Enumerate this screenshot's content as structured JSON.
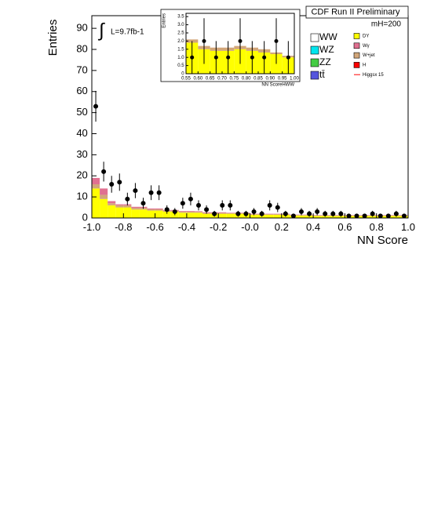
{
  "chart_data": [
    {
      "type": "histogram",
      "title": "CDF Run II Preliminary",
      "xlabel": "NN Score",
      "ylabel": "Entries",
      "annotations": [
        "L=9.7fb-1",
        "mH=200"
      ],
      "bins": [
        -1,
        -0.95,
        -0.9,
        -0.85,
        -0.8,
        -0.75,
        -0.7,
        -0.65,
        -0.6,
        -0.55,
        -0.5,
        -0.45,
        -0.4,
        -0.35,
        -0.3,
        -0.25,
        -0.2,
        -0.15,
        -0.1,
        -0.05,
        0,
        0.05,
        0.1,
        0.15,
        0.2,
        0.25,
        0.3,
        0.35,
        0.4,
        0.45,
        0.5,
        0.55,
        0.6,
        0.65,
        0.7,
        0.75,
        0.8,
        0.85,
        0.9,
        0.95,
        1
      ],
      "series": [
        {
          "name": "DY",
          "color": "#ffff00",
          "values": [
            14,
            9,
            6,
            5,
            5,
            4,
            4,
            3.5,
            3.5,
            3,
            3,
            2.5,
            2.5,
            2.5,
            2,
            2,
            2,
            2,
            2,
            2,
            1.5,
            1.5,
            1.5,
            1.5,
            1.5,
            1.2,
            1.2,
            1.2,
            1,
            1,
            1,
            1,
            1,
            1,
            1,
            1,
            1,
            1,
            1,
            1
          ]
        },
        {
          "name": "W+jet",
          "color": "#d2a679",
          "values": [
            2,
            2,
            1,
            1,
            1,
            0.8,
            0.8,
            0.6,
            0.6,
            0.5,
            0.5,
            0.5,
            0.5,
            0.4,
            0.4,
            0.4,
            0.4,
            0.3,
            0.3,
            0.3,
            0.3,
            0.3,
            0.3,
            0.3,
            0.3,
            0.2,
            0.2,
            0.2,
            0.2,
            0.2,
            0.2,
            0.2,
            0.2,
            0.2,
            0.2,
            0.2,
            0.2,
            0.2,
            0.2,
            0.2
          ]
        },
        {
          "name": "Wγ",
          "color": "#e07090",
          "values": [
            3,
            3,
            1,
            0.5,
            0.5,
            0.5,
            0.5,
            0.4,
            0.4,
            0.3,
            0.3,
            0.3,
            0.3,
            0.3,
            0.3,
            0.3,
            0.3,
            0.2,
            0.2,
            0.2,
            0.2,
            0.2,
            0.2,
            0.2,
            0.2,
            0.2,
            0.2,
            0.2,
            0.2,
            0.2,
            0.2,
            0.2,
            0.2,
            0.2,
            0.2,
            0.2,
            0.2,
            0.2,
            0.2,
            0.2
          ]
        }
      ],
      "points": {
        "values": [
          53,
          22,
          16,
          17,
          9,
          13,
          7,
          12,
          12,
          4,
          3,
          7,
          9,
          6,
          4,
          2,
          6,
          6,
          2,
          2,
          3,
          2,
          6,
          5,
          2,
          1,
          3,
          2,
          3,
          2,
          2,
          2,
          1,
          1,
          1,
          2,
          1,
          1,
          2,
          1
        ],
        "errors": [
          7.3,
          4.7,
          4,
          4.1,
          3,
          3.6,
          2.6,
          3.5,
          3.5,
          2,
          1.7,
          2.6,
          3,
          2.4,
          2,
          1.4,
          2.4,
          2.4,
          1.4,
          1.4,
          1.7,
          1.4,
          2.4,
          2.2,
          1.4,
          1,
          1.7,
          1.4,
          1.7,
          1.4,
          1.4,
          1.4,
          1,
          1,
          1,
          1.4,
          1,
          1,
          1.4,
          1
        ]
      },
      "xlim": [
        -1,
        1
      ],
      "ylim": [
        0,
        96
      ],
      "xticks": [
        {
          "value": -1,
          "label": "-1.0"
        },
        -0.8,
        -0.6,
        -0.4,
        -0.2,
        {
          "value": 0,
          "label": "-0.0"
        },
        0.2,
        0.4,
        0.6,
        0.8,
        {
          "value": 1,
          "label": "1.0"
        }
      ],
      "yticks": [
        0,
        10,
        20,
        30,
        40,
        50,
        60,
        70,
        80,
        90
      ]
    },
    {
      "type": "histogram",
      "xlabel": "NN ScoreHWW",
      "ylabel": "Entries",
      "bins": [
        0.55,
        0.6,
        0.65,
        0.7,
        0.75,
        0.8,
        0.85,
        0.9,
        0.95,
        1
      ],
      "series": [
        {
          "name": "DY",
          "color": "#ffff00",
          "values": [
            1.9,
            1.5,
            1.4,
            1.4,
            1.5,
            1.4,
            1.3,
            1.2,
            1.0
          ]
        },
        {
          "name": "W+jet",
          "color": "#d2a679",
          "values": [
            0.2,
            0.2,
            0.2,
            0.2,
            0.2,
            0.2,
            0.2,
            0.1,
            0.1
          ]
        }
      ],
      "points": {
        "values": [
          1,
          2,
          1,
          1,
          2,
          1,
          1,
          2,
          1
        ],
        "errors": [
          1,
          1.4,
          1,
          1,
          1.4,
          1,
          1,
          1.4,
          1
        ]
      },
      "xlim": [
        0.55,
        1
      ],
      "ylim": [
        0,
        3.7
      ],
      "xticks": [
        0.55,
        {
          "value": 0.6,
          "label": "0.60"
        },
        0.65,
        {
          "value": 0.7,
          "label": "0.70"
        },
        0.75,
        {
          "value": 0.8,
          "label": "0.80"
        },
        0.85,
        {
          "value": 0.9,
          "label": "0.90"
        },
        0.95,
        {
          "value": 1,
          "label": "1.00"
        }
      ],
      "yticks": [
        0,
        0.5,
        {
          "value": 1,
          "label": "1.0"
        },
        1.5,
        {
          "value": 2,
          "label": "2.0"
        },
        2.5,
        {
          "value": 3,
          "label": "3.0"
        },
        3.5
      ]
    }
  ],
  "legend": [
    {
      "name": "WW",
      "color": "#ffffff"
    },
    {
      "name": "WZ",
      "color": "#00e5ee"
    },
    {
      "name": "ZZ",
      "color": "#44cc44"
    },
    {
      "name": "tt̄",
      "color": "#5555dd"
    },
    {
      "name": "DY",
      "color": "#ffff00"
    },
    {
      "name": "Wγ",
      "color": "#e07090"
    },
    {
      "name": "W+jet",
      "color": "#d2a679"
    },
    {
      "name": "H",
      "color": "#ff0000"
    },
    {
      "name": "Higgsx 15",
      "color": "#ff0000"
    }
  ]
}
